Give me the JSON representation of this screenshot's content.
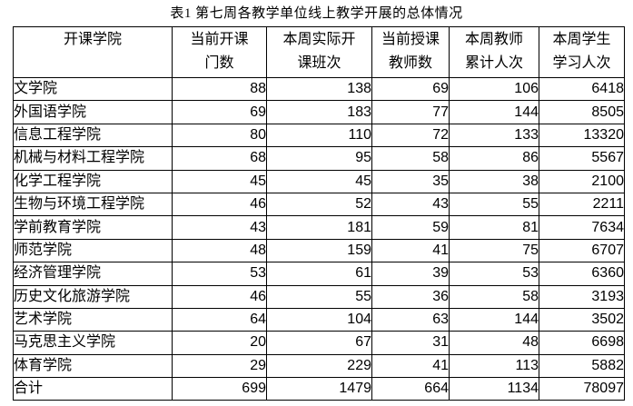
{
  "title": "表1  第七周各教学单位线上教学开展的总体情况",
  "table": {
    "headers": [
      {
        "line1": "开课学院",
        "line2": ""
      },
      {
        "line1": "当前开课",
        "line2": "门数"
      },
      {
        "line1": "本周实际开",
        "line2": "课班次"
      },
      {
        "line1": "当前授课",
        "line2": "教师数"
      },
      {
        "line1": "本周教师",
        "line2": "累计人次"
      },
      {
        "line1": "本周学生",
        "line2": "学习人次"
      }
    ],
    "rows": [
      {
        "college": "文学院",
        "values": [
          88,
          138,
          69,
          106,
          6418
        ]
      },
      {
        "college": "外国语学院",
        "values": [
          69,
          183,
          77,
          144,
          8505
        ]
      },
      {
        "college": "信息工程学院",
        "values": [
          80,
          110,
          72,
          133,
          13320
        ]
      },
      {
        "college": "机械与材料工程学院",
        "values": [
          68,
          95,
          58,
          86,
          5567
        ]
      },
      {
        "college": "化学工程学院",
        "values": [
          45,
          45,
          35,
          38,
          2100
        ]
      },
      {
        "college": "生物与环境工程学院",
        "values": [
          46,
          52,
          43,
          55,
          2211
        ]
      },
      {
        "college": "学前教育学院",
        "values": [
          43,
          181,
          59,
          81,
          7634
        ]
      },
      {
        "college": "师范学院",
        "values": [
          48,
          159,
          41,
          75,
          6707
        ]
      },
      {
        "college": "经济管理学院",
        "values": [
          53,
          61,
          39,
          53,
          6360
        ]
      },
      {
        "college": "历史文化旅游学院",
        "values": [
          46,
          55,
          36,
          58,
          3193
        ]
      },
      {
        "college": "艺术学院",
        "values": [
          64,
          104,
          63,
          144,
          3502
        ]
      },
      {
        "college": "马克思主义学院",
        "values": [
          20,
          67,
          31,
          48,
          6698
        ]
      },
      {
        "college": "体育学院",
        "values": [
          29,
          229,
          41,
          113,
          5882
        ]
      },
      {
        "college": "合计",
        "values": [
          699,
          1479,
          664,
          1134,
          78097
        ]
      }
    ]
  }
}
